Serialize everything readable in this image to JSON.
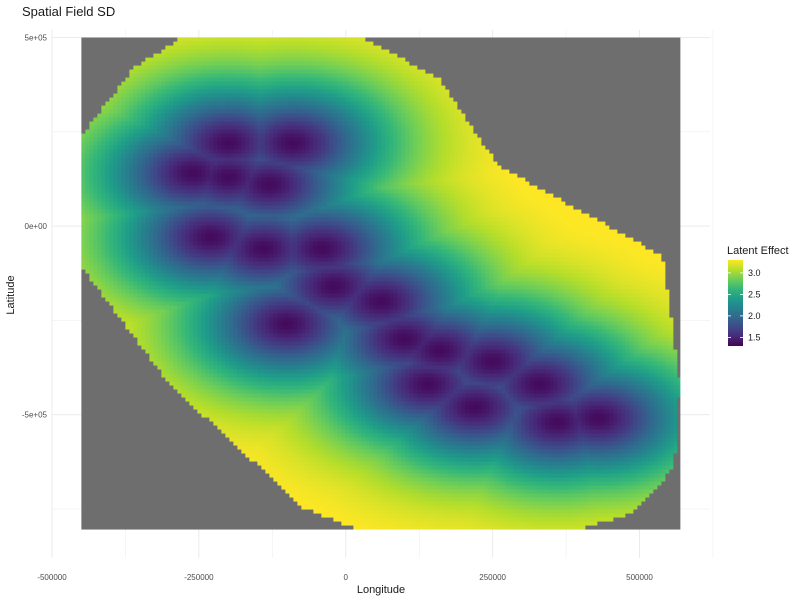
{
  "chart_data": {
    "type": "heatmap",
    "title": "Spatial Field SD",
    "xlabel": "Longitude",
    "ylabel": "Latitude",
    "x_ticks": [
      {
        "value": -500000,
        "label": "-500000"
      },
      {
        "value": -250000,
        "label": "-250000"
      },
      {
        "value": 0,
        "label": "0"
      },
      {
        "value": 250000,
        "label": "250000"
      },
      {
        "value": 500000,
        "label": "500000"
      }
    ],
    "y_ticks": [
      {
        "value": 500000,
        "label": "5e+05"
      },
      {
        "value": 0,
        "label": "0e+00"
      },
      {
        "value": -500000,
        "label": "-5e+05"
      }
    ],
    "xlim": [
      -500000,
      620000
    ],
    "ylim": [
      -880000,
      520000
    ],
    "raster_extent": {
      "x": [
        -450000,
        570000
      ],
      "y": [
        -805000,
        500000
      ]
    },
    "na_fill": "#6e6e6e",
    "domain_boundary": [
      [
        -280000,
        500000
      ],
      [
        30000,
        500000
      ],
      [
        160000,
        390000
      ],
      [
        260000,
        160000
      ],
      [
        540000,
        -80000
      ],
      [
        570000,
        -420000
      ],
      [
        560000,
        -640000
      ],
      [
        490000,
        -760000
      ],
      [
        400000,
        -805000
      ],
      [
        20000,
        -805000
      ],
      [
        -70000,
        -750000
      ],
      [
        -300000,
        -420000
      ],
      [
        -450000,
        -110000
      ],
      [
        -450000,
        240000
      ],
      [
        -360000,
        420000
      ]
    ],
    "field_minimum_points": [
      [
        -200000,
        130000
      ],
      [
        -130000,
        110000
      ],
      [
        -230000,
        -30000
      ],
      [
        -140000,
        -60000
      ],
      [
        -200000,
        220000
      ],
      [
        -90000,
        220000
      ],
      [
        -100000,
        -260000
      ],
      [
        -20000,
        -160000
      ],
      [
        60000,
        -200000
      ],
      [
        140000,
        -420000
      ],
      [
        220000,
        -480000
      ],
      [
        330000,
        -420000
      ],
      [
        430000,
        -510000
      ],
      [
        160000,
        -330000
      ],
      [
        250000,
        -360000
      ],
      [
        -40000,
        -60000
      ],
      [
        -260000,
        140000
      ],
      [
        100000,
        -300000
      ],
      [
        360000,
        -520000
      ]
    ],
    "colorbar": {
      "title": "Latent Effect",
      "palette": "viridis",
      "colors": [
        "#440154",
        "#482878",
        "#3e4a89",
        "#31688e",
        "#26828e",
        "#1f9e89",
        "#35b779",
        "#6ece58",
        "#b5de2b",
        "#fde725"
      ],
      "range": [
        1.3,
        3.3
      ],
      "ticks": [
        {
          "value": 1.5,
          "label": "1.5"
        },
        {
          "value": 2.0,
          "label": "2.0"
        },
        {
          "value": 2.5,
          "label": "2.5"
        },
        {
          "value": 3.0,
          "label": "3.0"
        }
      ]
    },
    "grid": true
  }
}
